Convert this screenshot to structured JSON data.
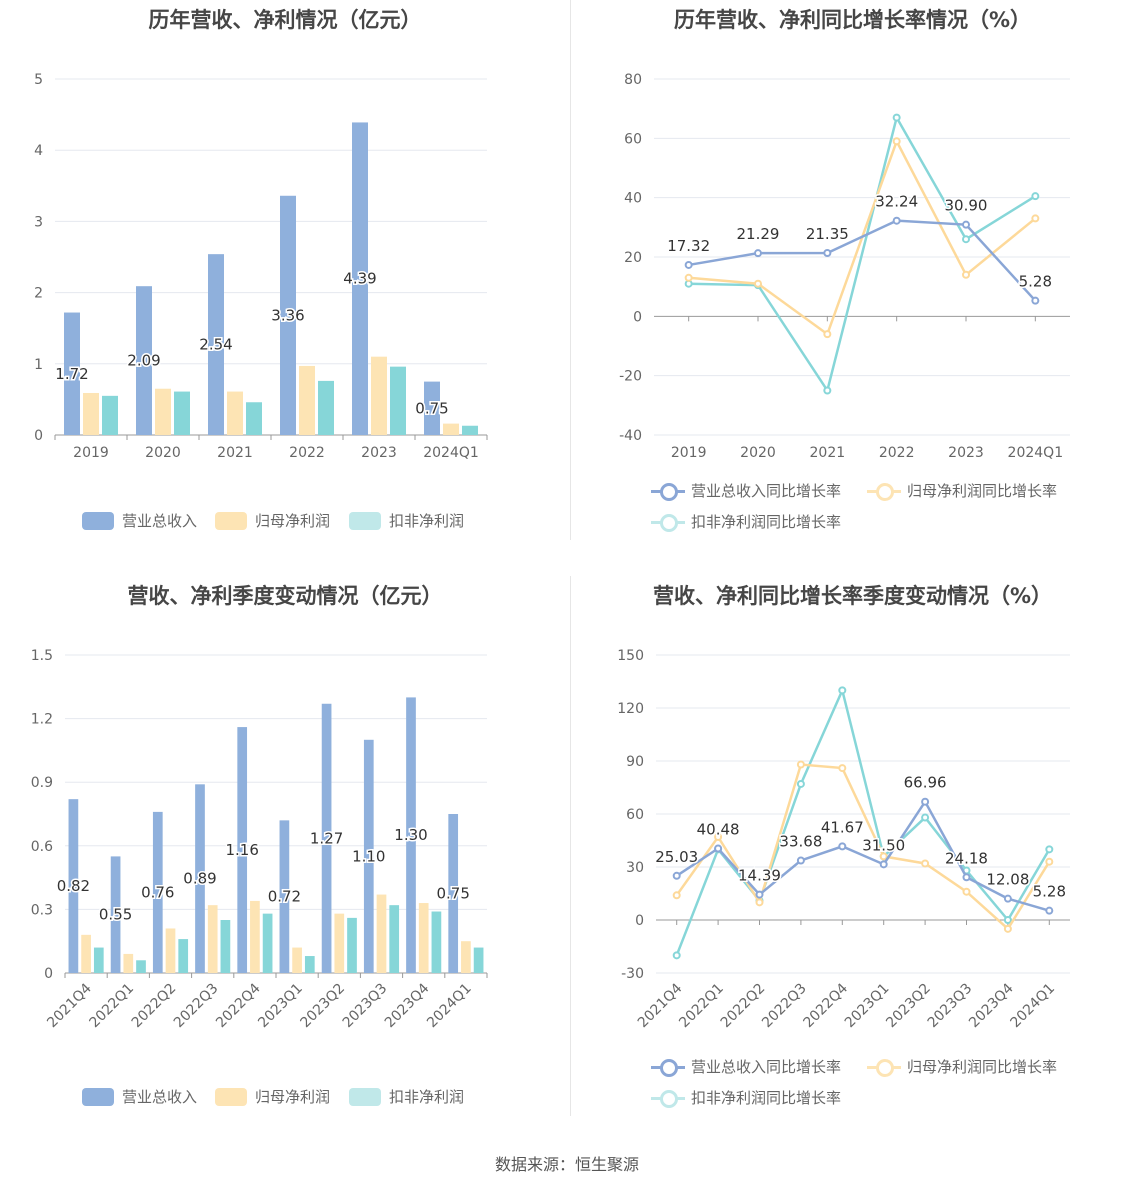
{
  "colors": {
    "revenue": "#8fb0dc",
    "net": "#fde4b4",
    "deducted": "#86d6d8",
    "line_revenue": "#8aa6d6",
    "line_net": "#fdd99a",
    "line_deducted": "#86d6d8"
  },
  "source": "数据来源：恒生聚源",
  "charts": [
    {
      "title": "历年营收、净利情况（亿元）",
      "legend": [
        "营业总收入",
        "归母净利润",
        "扣非净利润"
      ],
      "chart_data": {
        "type": "bar",
        "categories": [
          "2019",
          "2020",
          "2021",
          "2022",
          "2023",
          "2024Q1"
        ],
        "ylim": [
          0,
          5
        ],
        "yticks": [
          0,
          1,
          2,
          3,
          4,
          5
        ],
        "series": [
          {
            "name": "营业总收入",
            "values": [
              1.72,
              2.09,
              2.54,
              3.36,
              4.39,
              0.75
            ],
            "labels": [
              "1.72",
              "2.09",
              "2.54",
              "3.36",
              "4.39",
              "0.75"
            ]
          },
          {
            "name": "归母净利润",
            "values": [
              0.59,
              0.65,
              0.61,
              0.97,
              1.1,
              0.16
            ]
          },
          {
            "name": "扣非净利润",
            "values": [
              0.55,
              0.61,
              0.46,
              0.76,
              0.96,
              0.13
            ]
          }
        ]
      }
    },
    {
      "title": "历年营收、净利同比增长率情况（%）",
      "legend": [
        "营业总收入同比增长率",
        "归母净利润同比增长率",
        "扣非净利润同比增长率"
      ],
      "chart_data": {
        "type": "line",
        "categories": [
          "2019",
          "2020",
          "2021",
          "2022",
          "2023",
          "2024Q1"
        ],
        "ylim": [
          -40,
          80
        ],
        "yticks": [
          -40,
          -20,
          0,
          20,
          40,
          60,
          80
        ],
        "series": [
          {
            "name": "营业总收入同比增长率",
            "values": [
              17.32,
              21.29,
              21.35,
              32.24,
              30.9,
              5.28
            ],
            "labels": [
              "17.32",
              "21.29",
              "21.35",
              "32.24",
              "30.90",
              "5.28"
            ]
          },
          {
            "name": "归母净利润同比增长率",
            "values": [
              13,
              11,
              -6,
              59,
              14,
              33
            ]
          },
          {
            "name": "扣非净利润同比增长率",
            "values": [
              11,
              10.5,
              -25,
              67,
              26,
              40.5
            ]
          }
        ]
      }
    },
    {
      "title": "营收、净利季度变动情况（亿元）",
      "legend": [
        "营业总收入",
        "归母净利润",
        "扣非净利润"
      ],
      "chart_data": {
        "type": "bar",
        "categories": [
          "2021Q4",
          "2022Q1",
          "2022Q2",
          "2022Q3",
          "2022Q4",
          "2023Q1",
          "2023Q2",
          "2023Q3",
          "2023Q4",
          "2024Q1"
        ],
        "ylim": [
          0,
          1.5
        ],
        "yticks": [
          0,
          0.3,
          0.6,
          0.9,
          1.2,
          1.5
        ],
        "ytick_labels": [
          "0",
          "0.3",
          "0.6",
          "0.9",
          "1.2",
          "1.5"
        ],
        "series": [
          {
            "name": "营业总收入",
            "values": [
              0.82,
              0.55,
              0.76,
              0.89,
              1.16,
              0.72,
              1.27,
              1.1,
              1.3,
              0.75
            ],
            "labels": [
              "0.82",
              "0.55",
              "0.76",
              "0.89",
              "1.16",
              "0.72",
              "1.27",
              "1.10",
              "1.30",
              "0.75"
            ]
          },
          {
            "name": "归母净利润",
            "values": [
              0.18,
              0.09,
              0.21,
              0.32,
              0.34,
              0.12,
              0.28,
              0.37,
              0.33,
              0.15
            ]
          },
          {
            "name": "扣非净利润",
            "values": [
              0.12,
              0.06,
              0.16,
              0.25,
              0.28,
              0.08,
              0.26,
              0.32,
              0.29,
              0.12
            ]
          }
        ]
      }
    },
    {
      "title": "营收、净利同比增长率季度变动情况（%）",
      "legend": [
        "营业总收入同比增长率",
        "归母净利润同比增长率",
        "扣非净利润同比增长率"
      ],
      "chart_data": {
        "type": "line",
        "categories": [
          "2021Q4",
          "2022Q1",
          "2022Q2",
          "2022Q3",
          "2022Q4",
          "2023Q1",
          "2023Q2",
          "2023Q3",
          "2023Q4",
          "2024Q1"
        ],
        "ylim": [
          -30,
          150
        ],
        "yticks": [
          -30,
          0,
          30,
          60,
          90,
          120,
          150
        ],
        "series": [
          {
            "name": "营业总收入同比增长率",
            "values": [
              25.03,
              40.48,
              14.39,
              33.68,
              41.67,
              31.5,
              66.96,
              24.18,
              12.08,
              5.28
            ],
            "labels": [
              "25.03",
              "40.48",
              "14.39",
              "33.68",
              "41.67",
              "31.50",
              "66.96",
              "24.18",
              "12.08",
              "5.28"
            ]
          },
          {
            "name": "归母净利润同比增长率",
            "values": [
              14,
              47,
              10,
              88,
              86,
              36,
              32,
              16,
              -5,
              33
            ]
          },
          {
            "name": "扣非净利润同比增长率",
            "values": [
              -20,
              40,
              11,
              77,
              130,
              36,
              58,
              28,
              0,
              40
            ]
          }
        ]
      }
    }
  ]
}
